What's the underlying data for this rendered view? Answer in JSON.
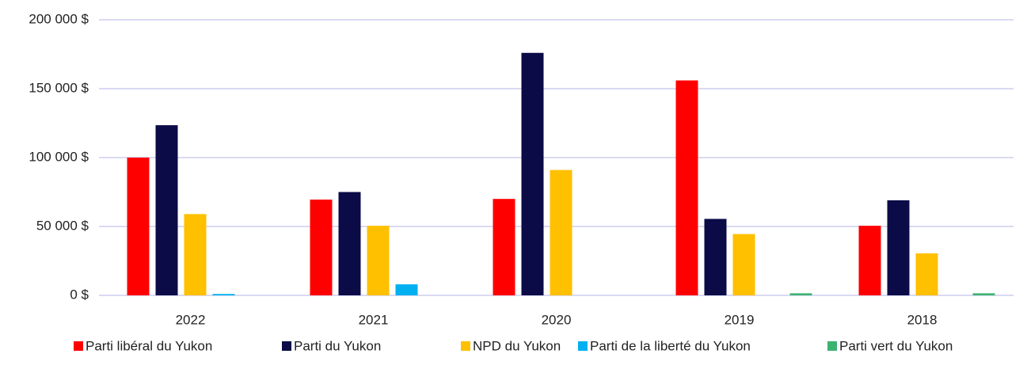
{
  "chart_data": {
    "type": "bar",
    "categories": [
      "2022",
      "2021",
      "2020",
      "2019",
      "2018"
    ],
    "series": [
      {
        "name": "Parti libéral du Yukon",
        "color": "#ff0000",
        "values": [
          100000,
          69500,
          70000,
          156000,
          50500
        ]
      },
      {
        "name": "Parti du Yukon",
        "color": "#0b0b47",
        "values": [
          123500,
          75000,
          176000,
          55500,
          69000
        ]
      },
      {
        "name": "NPD du Yukon",
        "color": "#ffc000",
        "values": [
          59000,
          50500,
          91000,
          44500,
          30500
        ]
      },
      {
        "name": "Parti de la liberté du Yukon",
        "color": "#00b0f0",
        "values": [
          1000,
          8000,
          0,
          0,
          0
        ]
      },
      {
        "name": "Parti vert du Yukon",
        "color": "#3cb371",
        "values": [
          0,
          0,
          0,
          1500,
          1500
        ]
      }
    ],
    "ylim": [
      0,
      200000
    ],
    "yticks": [
      {
        "value": 0,
        "label": "0 $"
      },
      {
        "value": 50000,
        "label": "50 000 $"
      },
      {
        "value": 100000,
        "label": "100 000 $"
      },
      {
        "value": 150000,
        "label": "150 000 $"
      },
      {
        "value": 200000,
        "label": "200 000 $"
      }
    ],
    "grid": true,
    "legend": "bottom"
  }
}
